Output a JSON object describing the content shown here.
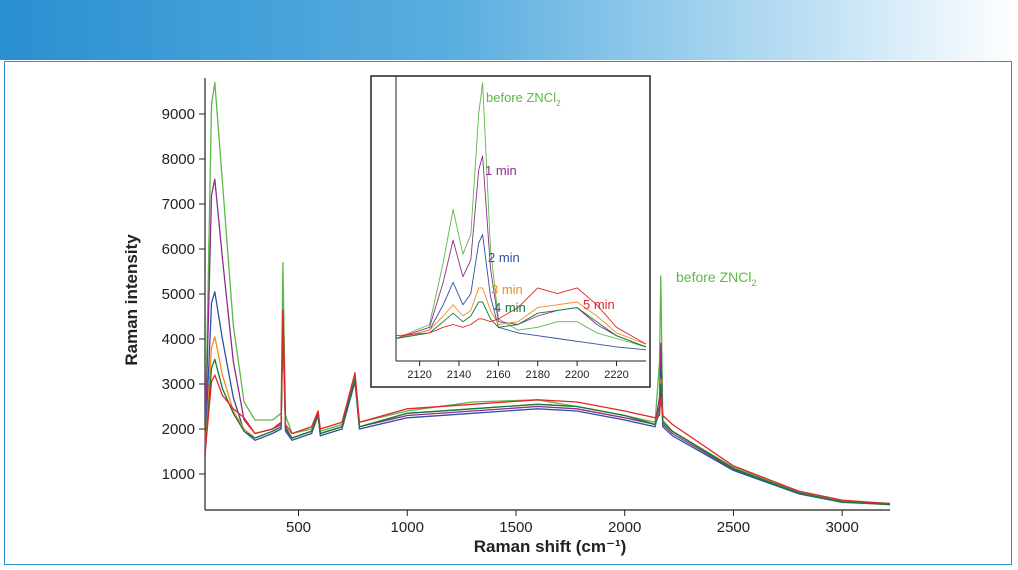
{
  "chart_data": [
    {
      "type": "line",
      "xlabel": "Raman shift (cm⁻¹)",
      "ylabel": "Raman intensity",
      "xlim": [
        70,
        3220
      ],
      "ylim": [
        200,
        9800
      ],
      "xticks": [
        500,
        1000,
        1500,
        2000,
        2500,
        3000
      ],
      "yticks": [
        1000,
        2000,
        3000,
        4000,
        5000,
        6000,
        7000,
        8000,
        9000
      ],
      "annotations": [
        {
          "text": "before ZNCl",
          "sub": "2",
          "color": "#5cb848"
        }
      ],
      "series": [
        {
          "name": "before ZNCl2",
          "color": "#5cb848",
          "x": [
            70,
            100,
            115,
            150,
            200,
            250,
            300,
            380,
            420,
            428,
            440,
            470,
            560,
            590,
            600,
            700,
            760,
            780,
            1000,
            1300,
            1600,
            1780,
            2000,
            2140,
            2160,
            2166,
            2175,
            2220,
            2500,
            2800,
            3000,
            3220
          ],
          "y": [
            1500,
            9200,
            9700,
            7500,
            4300,
            2600,
            2200,
            2200,
            2350,
            5700,
            2300,
            1900,
            2000,
            2400,
            1950,
            2100,
            3200,
            2150,
            2400,
            2600,
            2650,
            2500,
            2300,
            2150,
            3500,
            5400,
            2200,
            1950,
            1150,
            600,
            400,
            350
          ]
        },
        {
          "name": "1 min",
          "color": "#8e2d8c",
          "x": [
            70,
            100,
            115,
            150,
            200,
            250,
            300,
            380,
            420,
            428,
            440,
            470,
            560,
            590,
            600,
            700,
            760,
            780,
            1000,
            1300,
            1600,
            1780,
            2000,
            2140,
            2160,
            2166,
            2175,
            2220,
            2500,
            2800,
            3000,
            3220
          ],
          "y": [
            1450,
            7200,
            7550,
            5800,
            3500,
            2200,
            1900,
            2000,
            2100,
            4600,
            2050,
            1800,
            1950,
            2350,
            1900,
            2050,
            3100,
            2050,
            2300,
            2400,
            2500,
            2450,
            2250,
            2100,
            2700,
            3900,
            2100,
            1900,
            1100,
            580,
            380,
            330
          ]
        },
        {
          "name": "2 min",
          "color": "#2f4fa2",
          "x": [
            70,
            100,
            115,
            150,
            200,
            250,
            300,
            380,
            420,
            428,
            440,
            470,
            560,
            590,
            600,
            700,
            760,
            780,
            1000,
            1300,
            1600,
            1780,
            2000,
            2140,
            2160,
            2166,
            2175,
            2220,
            2500,
            2800,
            3000,
            3220
          ],
          "y": [
            1400,
            4800,
            5050,
            4000,
            2700,
            1950,
            1750,
            1900,
            2000,
            4300,
            1950,
            1750,
            1900,
            2300,
            1850,
            2000,
            3050,
            2000,
            2250,
            2350,
            2450,
            2400,
            2200,
            2050,
            2500,
            3300,
            2050,
            1850,
            1080,
            560,
            370,
            320
          ]
        },
        {
          "name": "3 min",
          "color": "#f28c1f",
          "x": [
            70,
            100,
            115,
            150,
            200,
            250,
            300,
            380,
            420,
            428,
            440,
            470,
            560,
            590,
            600,
            700,
            760,
            780,
            1000,
            1300,
            1600,
            1780,
            2000,
            2140,
            2160,
            2166,
            2175,
            2220,
            2500,
            2800,
            3000,
            3220
          ],
          "y": [
            1400,
            3800,
            4050,
            3200,
            2400,
            2000,
            1800,
            1950,
            2050,
            4400,
            2000,
            1800,
            1950,
            2300,
            1900,
            2050,
            3100,
            2050,
            2350,
            2450,
            2550,
            2500,
            2300,
            2100,
            2400,
            3100,
            2150,
            1950,
            1120,
            580,
            380,
            320
          ]
        },
        {
          "name": "4 min",
          "color": "#0e7a3c",
          "x": [
            70,
            100,
            115,
            150,
            200,
            250,
            300,
            380,
            420,
            428,
            440,
            470,
            560,
            590,
            600,
            700,
            760,
            780,
            1000,
            1300,
            1600,
            1780,
            2000,
            2140,
            2160,
            2166,
            2175,
            2220,
            2500,
            2800,
            3000,
            3220
          ],
          "y": [
            1400,
            3350,
            3550,
            2900,
            2350,
            1950,
            1800,
            1950,
            2050,
            4400,
            2000,
            1800,
            1950,
            2300,
            1900,
            2050,
            3100,
            2050,
            2350,
            2450,
            2550,
            2500,
            2300,
            2100,
            2350,
            3000,
            2150,
            1950,
            1120,
            580,
            380,
            320
          ]
        },
        {
          "name": "5 min",
          "color": "#e0262b",
          "x": [
            70,
            100,
            115,
            150,
            200,
            250,
            300,
            380,
            420,
            428,
            440,
            470,
            560,
            590,
            600,
            700,
            760,
            780,
            1000,
            1300,
            1600,
            1780,
            2000,
            2140,
            2160,
            2166,
            2175,
            2220,
            2500,
            2800,
            3000,
            3220
          ],
          "y": [
            1450,
            3050,
            3200,
            2750,
            2450,
            2250,
            1900,
            2000,
            2150,
            4650,
            2100,
            1900,
            2050,
            2400,
            2000,
            2150,
            3250,
            2150,
            2450,
            2550,
            2650,
            2600,
            2400,
            2250,
            2300,
            2700,
            2300,
            2100,
            1180,
            620,
            420,
            340
          ]
        }
      ]
    },
    {
      "type": "line",
      "role": "inset",
      "xlim": [
        2108,
        2235
      ],
      "ylim": [
        0,
        10
      ],
      "xticks": [
        2120,
        2140,
        2160,
        2180,
        2200,
        2220
      ],
      "annotations": [
        {
          "text": "before ZNCl",
          "sub": "2",
          "color": "#5cb848"
        },
        {
          "text": "1 min",
          "color": "#8e2d8c"
        },
        {
          "text": "2 min",
          "color": "#2f4fa2"
        },
        {
          "text": "3 min",
          "color": "#f28c1f"
        },
        {
          "text": "4 min",
          "color": "#0e7a3c"
        },
        {
          "text": "5 min",
          "color": "#e0262b"
        }
      ],
      "series": [
        {
          "name": "before ZNCl2",
          "color": "#5cb848",
          "x": [
            2108,
            2125,
            2132,
            2137,
            2142,
            2146,
            2150,
            2152,
            2156,
            2160,
            2170,
            2180,
            2190,
            2200,
            2210,
            2220,
            2235
          ],
          "y": [
            0.8,
            1.3,
            3.5,
            5.4,
            3.8,
            4.5,
            8.8,
            9.9,
            4.0,
            1.5,
            1.1,
            1.2,
            1.4,
            1.4,
            1.0,
            0.8,
            0.5
          ]
        },
        {
          "name": "1 min",
          "color": "#8e2d8c",
          "x": [
            2108,
            2125,
            2132,
            2137,
            2142,
            2146,
            2150,
            2152,
            2156,
            2160,
            2170,
            2180,
            2190,
            2200,
            2210,
            2220,
            2235
          ],
          "y": [
            0.8,
            1.2,
            2.8,
            4.3,
            3.0,
            3.6,
            6.8,
            7.3,
            3.3,
            1.4,
            1.3,
            1.6,
            1.8,
            1.9,
            1.3,
            0.9,
            0.5
          ]
        },
        {
          "name": "2 min",
          "color": "#2f4fa2",
          "x": [
            2108,
            2125,
            2132,
            2137,
            2142,
            2146,
            2150,
            2152,
            2156,
            2160,
            2170,
            2180,
            2190,
            2200,
            2210,
            2220,
            2235
          ],
          "y": [
            0.8,
            1.1,
            2.0,
            2.8,
            2.0,
            2.4,
            4.2,
            4.5,
            2.3,
            1.2,
            1.0,
            0.9,
            0.8,
            0.7,
            0.6,
            0.5,
            0.4
          ]
        },
        {
          "name": "3 min",
          "color": "#f28c1f",
          "x": [
            2108,
            2125,
            2132,
            2137,
            2142,
            2146,
            2150,
            2152,
            2156,
            2160,
            2170,
            2180,
            2190,
            2200,
            2210,
            2220,
            2235
          ],
          "y": [
            0.8,
            1.1,
            1.6,
            2.0,
            1.6,
            1.8,
            2.6,
            2.6,
            1.8,
            1.3,
            1.4,
            1.9,
            2.0,
            2.1,
            1.6,
            1.0,
            0.6
          ]
        },
        {
          "name": "4 min",
          "color": "#0e7a3c",
          "x": [
            2108,
            2125,
            2132,
            2137,
            2142,
            2146,
            2150,
            2152,
            2156,
            2160,
            2170,
            2180,
            2190,
            2200,
            2210,
            2220,
            2235
          ],
          "y": [
            0.8,
            1.0,
            1.4,
            1.7,
            1.4,
            1.6,
            2.1,
            2.1,
            1.5,
            1.2,
            1.3,
            1.7,
            1.8,
            1.9,
            1.4,
            0.9,
            0.5
          ]
        },
        {
          "name": "5 min",
          "color": "#e0262b",
          "x": [
            2108,
            2125,
            2132,
            2137,
            2142,
            2146,
            2150,
            2152,
            2156,
            2160,
            2170,
            2180,
            2190,
            2200,
            2210,
            2220,
            2235
          ],
          "y": [
            0.9,
            1.0,
            1.2,
            1.3,
            1.2,
            1.3,
            1.5,
            1.5,
            1.4,
            1.5,
            1.9,
            2.6,
            2.4,
            2.6,
            2.0,
            1.2,
            0.6
          ]
        }
      ]
    }
  ]
}
